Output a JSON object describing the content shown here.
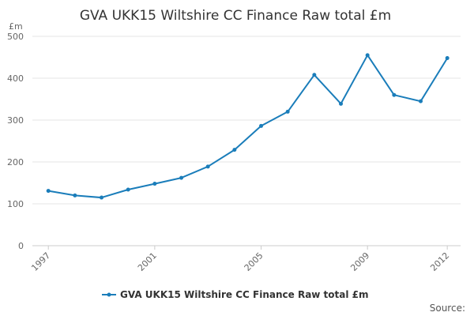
{
  "chart_data": {
    "type": "line",
    "title": "GVA UKK15 Wiltshire CC Finance Raw total £m",
    "y_unit_label": "£m",
    "xlabel": "",
    "ylabel": "",
    "x": [
      1997,
      1998,
      1999,
      2000,
      2001,
      2002,
      2003,
      2004,
      2005,
      2006,
      2007,
      2008,
      2009,
      2010,
      2011,
      2012
    ],
    "x_tick_labels": [
      "1997",
      "2001",
      "2005",
      "2009",
      "2012"
    ],
    "y_ticks": [
      0,
      100,
      200,
      300,
      400,
      500
    ],
    "ylim": [
      0,
      500
    ],
    "grid": true,
    "legend_position": "bottom-center",
    "series": [
      {
        "name": "GVA UKK15 Wiltshire CC Finance Raw total £m",
        "color": "#1a7dba",
        "values": [
          131,
          120,
          115,
          134,
          148,
          162,
          189,
          229,
          286,
          320,
          408,
          339,
          455,
          360,
          345,
          448
        ]
      }
    ]
  },
  "footer": {
    "source_label": "Source:"
  }
}
